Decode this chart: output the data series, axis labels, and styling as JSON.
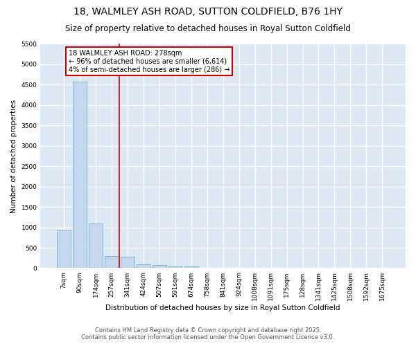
{
  "title": "18, WALMLEY ASH ROAD, SUTTON COLDFIELD, B76 1HY",
  "subtitle": "Size of property relative to detached houses in Royal Sutton Coldfield",
  "xlabel": "Distribution of detached houses by size in Royal Sutton Coldfield",
  "ylabel": "Number of detached properties",
  "categories": [
    "7sqm",
    "90sqm",
    "174sqm",
    "257sqm",
    "341sqm",
    "424sqm",
    "507sqm",
    "591sqm",
    "674sqm",
    "758sqm",
    "841sqm",
    "924sqm",
    "1008sqm",
    "1091sqm",
    "175sqm",
    "128sqm",
    "1341sqm",
    "1425sqm",
    "1508sqm",
    "1592sqm",
    "1675sqm"
  ],
  "values": [
    920,
    4580,
    1090,
    300,
    280,
    90,
    70,
    50,
    40,
    0,
    0,
    0,
    0,
    0,
    0,
    0,
    0,
    0,
    0,
    0,
    0
  ],
  "bar_color": "#c5d8f0",
  "bar_edge_color": "#6aaed6",
  "red_line_x": 3.5,
  "annotation_text": "18 WALMLEY ASH ROAD: 278sqm\n← 96% of detached houses are smaller (6,614)\n4% of semi-detached houses are larger (286) →",
  "annotation_box_color": "#ffffff",
  "annotation_box_edge_color": "#cc0000",
  "ylim": [
    0,
    5500
  ],
  "yticks": [
    0,
    500,
    1000,
    1500,
    2000,
    2500,
    3000,
    3500,
    4000,
    4500,
    5000,
    5500
  ],
  "bg_color": "#dde8f5",
  "grid_color": "#ffffff",
  "fig_bg_color": "#ffffff",
  "footer": "Contains HM Land Registry data © Crown copyright and database right 2025.\nContains public sector information licensed under the Open Government Licence v3.0.",
  "title_fontsize": 10,
  "subtitle_fontsize": 8.5,
  "xlabel_fontsize": 7.5,
  "ylabel_fontsize": 7.5,
  "tick_fontsize": 6.5,
  "annotation_fontsize": 7,
  "footer_fontsize": 6
}
